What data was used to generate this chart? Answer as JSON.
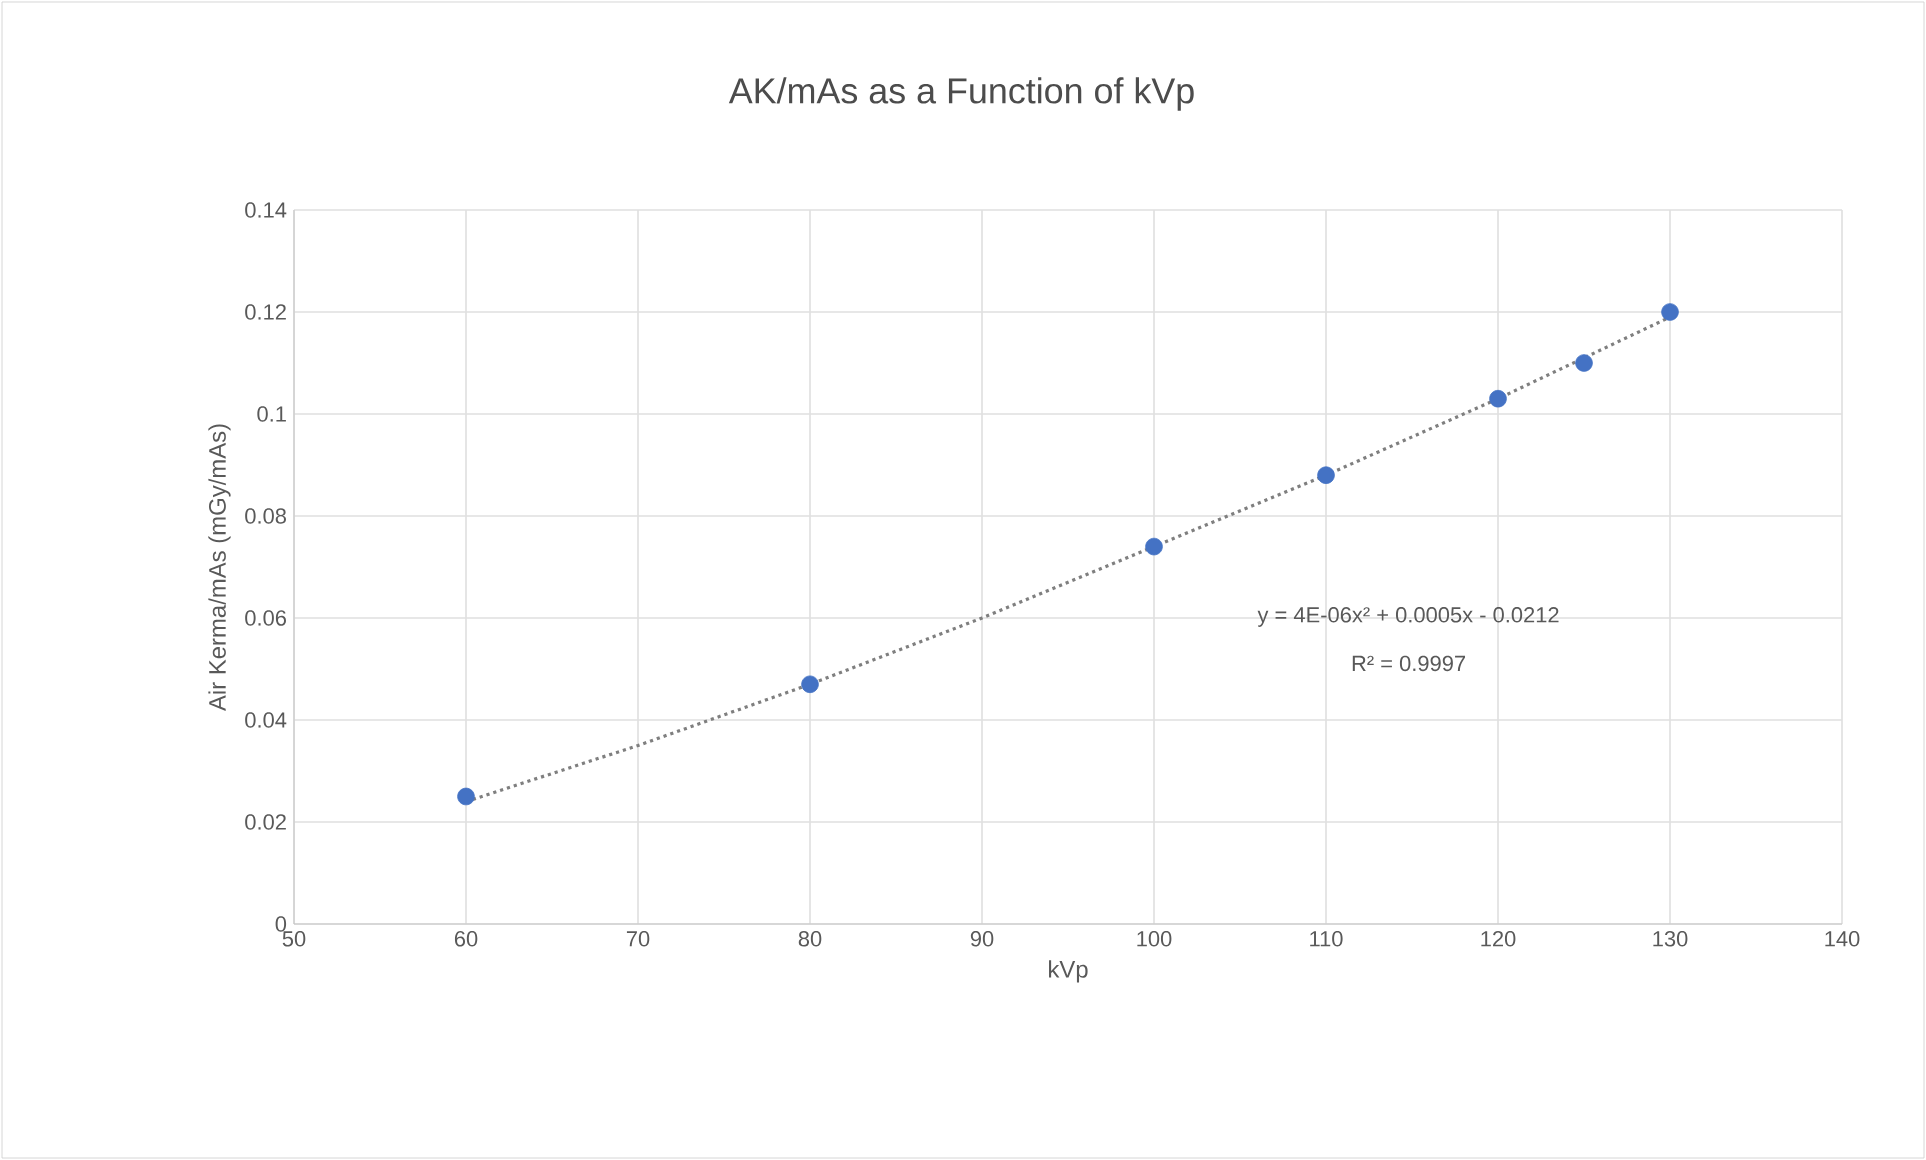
{
  "chart_data": {
    "type": "scatter",
    "title": "AK/mAs as a Function of kVp",
    "xlabel": "kVp",
    "ylabel": "Air Kerma/mAs (mGy/mAs)",
    "series": [
      {
        "color": "#4472c4",
        "marker": "circle",
        "x": [
          60,
          80,
          100,
          110,
          120,
          125,
          130
        ],
        "values": [
          0.025,
          0.047,
          0.074,
          0.088,
          0.103,
          0.11,
          0.12
        ]
      },
      {
        "type": "line",
        "color": "#7f7f7f",
        "line_style": "dotted",
        "x": [
          60,
          70,
          80,
          90,
          100,
          110,
          120,
          130
        ],
        "values": [
          0.024,
          0.035,
          0.047,
          0.06,
          0.074,
          0.088,
          0.103,
          0.119
        ]
      }
    ],
    "annotations": [
      "y = 4E-06x² + 0.0005x - 0.0212",
      "R² = 0.9997"
    ],
    "xlim": [
      50,
      140
    ],
    "xticks": [
      50,
      60,
      70,
      80,
      90,
      100,
      110,
      120,
      130,
      140
    ],
    "ylim": [
      0,
      0.14
    ],
    "yticks": [
      0,
      0.02,
      0.04,
      0.06,
      0.08,
      0.1,
      0.12,
      0.14
    ],
    "grid": true
  }
}
